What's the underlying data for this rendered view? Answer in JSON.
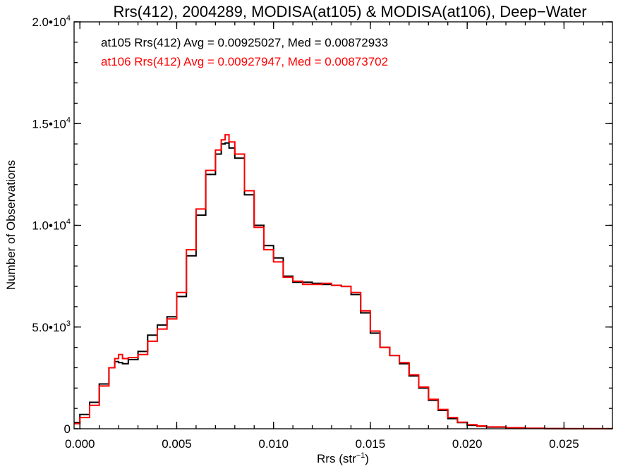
{
  "chart_data": {
    "type": "line",
    "title": "Rrs(412), 2004289, MODISA(at105) & MODISA(at106), Deep−Water",
    "xlabel_main": "Rrs (str",
    "xlabel_sup": "−1",
    "xlabel_close": ")",
    "ylabel": "Number of Observations",
    "xlim": [
      -0.0003,
      0.0275
    ],
    "ylim": [
      0,
      20000
    ],
    "x_ticks": [
      {
        "value": 0.0,
        "label": "0.000"
      },
      {
        "value": 0.005,
        "label": "0.005"
      },
      {
        "value": 0.01,
        "label": "0.010"
      },
      {
        "value": 0.015,
        "label": "0.015"
      },
      {
        "value": 0.02,
        "label": "0.020"
      },
      {
        "value": 0.025,
        "label": "0.025"
      }
    ],
    "y_ticks": [
      {
        "value": 0,
        "label": "0",
        "sup": ""
      },
      {
        "value": 5000,
        "label": "5.0•10",
        "sup": "3"
      },
      {
        "value": 10000,
        "label": "1.0•10",
        "sup": "4"
      },
      {
        "value": 15000,
        "label": "1.5•10",
        "sup": "4"
      },
      {
        "value": 20000,
        "label": "2.0•10",
        "sup": "4"
      }
    ],
    "annotations": [
      {
        "text": "at105 Rrs(412) Avg = 0.00925027, Med = 0.00872933",
        "color": "#000000"
      },
      {
        "text": "at106 Rrs(412) Avg = 0.00927947, Med = 0.00873702",
        "color": "#ff0000"
      }
    ],
    "series": [
      {
        "color": "#000000",
        "x": [
          -0.0003,
          0.0,
          0.0005,
          0.001,
          0.0015,
          0.0018,
          0.002,
          0.0022,
          0.0025,
          0.003,
          0.0035,
          0.004,
          0.0045,
          0.005,
          0.0055,
          0.006,
          0.0065,
          0.007,
          0.0073,
          0.0075,
          0.0077,
          0.008,
          0.0085,
          0.009,
          0.0095,
          0.01,
          0.0105,
          0.011,
          0.0115,
          0.012,
          0.0125,
          0.013,
          0.0135,
          0.014,
          0.0145,
          0.015,
          0.0155,
          0.016,
          0.0165,
          0.017,
          0.0175,
          0.018,
          0.0185,
          0.019,
          0.0195,
          0.02,
          0.0205,
          0.021,
          0.022,
          0.023,
          0.024,
          0.025,
          0.026,
          0.0275
        ],
        "y": [
          300,
          700,
          1300,
          2200,
          3000,
          3300,
          3250,
          3200,
          3400,
          3800,
          4600,
          5100,
          5500,
          6500,
          8500,
          10500,
          12500,
          13500,
          14000,
          14050,
          13800,
          13300,
          11500,
          10000,
          9000,
          8400,
          7500,
          7200,
          7200,
          7150,
          7100,
          7050,
          7000,
          6600,
          5700,
          4700,
          4000,
          3600,
          3200,
          2600,
          2000,
          1400,
          900,
          500,
          300,
          170,
          120,
          80,
          45,
          20,
          10,
          5,
          2,
          0
        ]
      },
      {
        "color": "#ff0000",
        "x": [
          -0.0003,
          0.0,
          0.0005,
          0.001,
          0.0015,
          0.0018,
          0.002,
          0.0022,
          0.0025,
          0.003,
          0.0035,
          0.004,
          0.0045,
          0.005,
          0.0055,
          0.006,
          0.0065,
          0.007,
          0.0073,
          0.0075,
          0.0077,
          0.008,
          0.0085,
          0.009,
          0.0095,
          0.01,
          0.0105,
          0.011,
          0.0115,
          0.012,
          0.0125,
          0.013,
          0.0135,
          0.014,
          0.0145,
          0.015,
          0.0155,
          0.016,
          0.0165,
          0.017,
          0.0175,
          0.018,
          0.0185,
          0.019,
          0.0195,
          0.02,
          0.0205,
          0.021,
          0.022,
          0.023,
          0.024,
          0.025,
          0.026,
          0.0275
        ],
        "y": [
          250,
          550,
          1150,
          2100,
          3000,
          3450,
          3650,
          3450,
          3500,
          3650,
          4300,
          4900,
          5400,
          6700,
          8800,
          10800,
          12700,
          13700,
          14200,
          14450,
          14100,
          13500,
          11700,
          9900,
          8800,
          8200,
          7450,
          7250,
          7100,
          7100,
          7150,
          7050,
          7000,
          6700,
          5800,
          4800,
          4000,
          3600,
          3250,
          2650,
          2050,
          1450,
          950,
          550,
          320,
          200,
          140,
          90,
          50,
          22,
          10,
          5,
          2,
          0
        ]
      }
    ]
  }
}
